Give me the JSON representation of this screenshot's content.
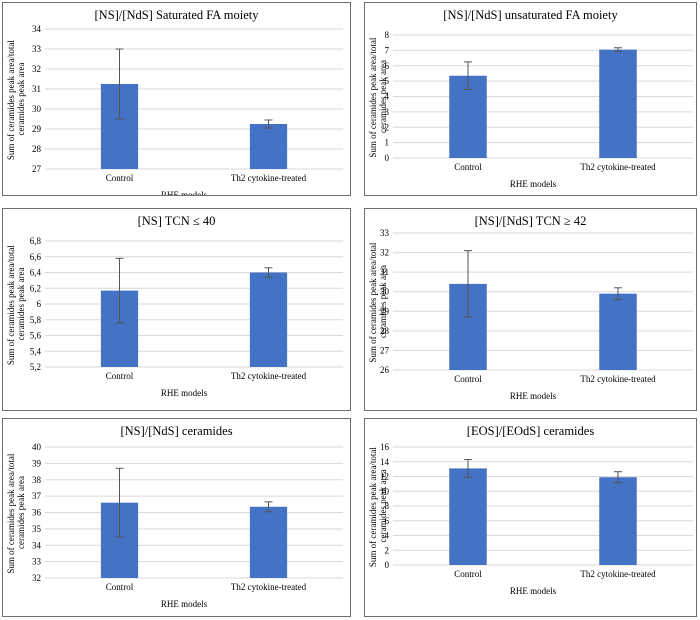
{
  "chart_data": [
    {
      "type": "bar",
      "title": "[NS]/[NdS] Saturated FA moiety",
      "ylabel": "Sum of ceramides peak area/total ceramides peak area",
      "xlabel": "RHE models",
      "categories": [
        "Control",
        "Th2 cytokine-treated"
      ],
      "values": [
        31.25,
        29.25
      ],
      "errors": [
        1.75,
        0.2
      ],
      "ylim": [
        27,
        34
      ],
      "yticks": [
        "27",
        "28",
        "29",
        "30",
        "31",
        "32",
        "33",
        "34"
      ],
      "bar_color": "#4472c4",
      "grid": true
    },
    {
      "type": "bar",
      "title": "[NS]/[NdS] unsaturated FA moiety",
      "ylabel": "Sum of ceramides peak area/total ceramides peak area",
      "xlabel": "RHE models",
      "categories": [
        "Control",
        "Th2 cytokine-treated"
      ],
      "values": [
        5.35,
        7.05
      ],
      "errors": [
        0.9,
        0.12
      ],
      "ylim": [
        0,
        8
      ],
      "yticks": [
        "0",
        "1",
        "2",
        "3",
        "4",
        "5",
        "6",
        "7",
        "8"
      ],
      "bar_color": "#4472c4",
      "grid": true
    },
    {
      "type": "bar",
      "title": "[NS] TCN ≤ 40",
      "ylabel": "Sum of ceramides peak area/total ceramides peak area",
      "xlabel": "RHE models",
      "categories": [
        "Control",
        "Th2 cytokine-treated"
      ],
      "values": [
        6.17,
        6.4
      ],
      "errors": [
        0.41,
        0.06
      ],
      "ylim": [
        5.2,
        6.8
      ],
      "yticks": [
        "5,2",
        "5,4",
        "5,6",
        "5,8",
        "6",
        "6,2",
        "6,4",
        "6,6",
        "6,8"
      ],
      "bar_color": "#4472c4",
      "grid": true
    },
    {
      "type": "bar",
      "title": "[NS]/[NdS] TCN ≥ 42",
      "ylabel": "Sum of ceramides peak area/total ceramides peak area",
      "xlabel": "RHE models",
      "categories": [
        "Control",
        "Th2 cytokine-treated"
      ],
      "values": [
        30.4,
        29.9
      ],
      "errors": [
        1.7,
        0.3
      ],
      "ylim": [
        26,
        33
      ],
      "yticks": [
        "26",
        "27",
        "28",
        "29",
        "30",
        "31",
        "32",
        "33"
      ],
      "bar_color": "#4472c4",
      "grid": true
    },
    {
      "type": "bar",
      "title": "[NS]/[NdS] ceramides",
      "ylabel": "Sum of ceramides peak area/total ceramides peak area",
      "xlabel": "RHE models",
      "categories": [
        "Control",
        "Th2 cytokine-treated"
      ],
      "values": [
        36.6,
        36.35
      ],
      "errors": [
        2.1,
        0.3
      ],
      "ylim": [
        32,
        40
      ],
      "yticks": [
        "32",
        "33",
        "34",
        "35",
        "36",
        "37",
        "38",
        "39",
        "40"
      ],
      "bar_color": "#4472c4",
      "grid": true
    },
    {
      "type": "bar",
      "title": "[EOS]/[EOdS] ceramides",
      "ylabel": "Sum of ceramides peak area/total ceramides peak area",
      "xlabel": "RHE models",
      "categories": [
        "Control",
        "Th2 cytokine-treated"
      ],
      "values": [
        13.1,
        11.9
      ],
      "errors": [
        1.2,
        0.75
      ],
      "ylim": [
        0,
        16
      ],
      "yticks": [
        "0",
        "2",
        "4",
        "6",
        "8",
        "10",
        "12",
        "14",
        "16"
      ],
      "bar_color": "#4472c4",
      "grid": true
    }
  ]
}
